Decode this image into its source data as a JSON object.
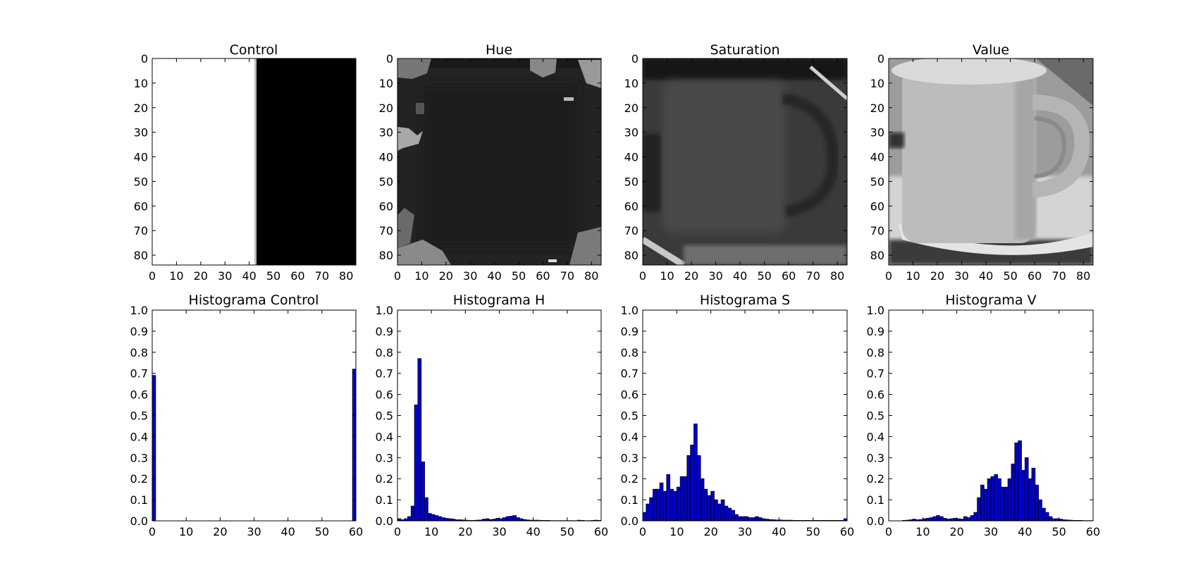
{
  "colors": {
    "bar_fill": "#0000cc",
    "bar_edge": "#000000",
    "axes": "#000000",
    "background": "#ffffff"
  },
  "images": [
    {
      "title": "Control",
      "kind": "control-split",
      "xticks": [
        0,
        10,
        20,
        30,
        40,
        50,
        60,
        70,
        80
      ],
      "yticks": [
        0,
        10,
        20,
        30,
        40,
        50,
        60,
        70,
        80
      ],
      "extent": [
        0,
        84
      ],
      "split_at": 43
    },
    {
      "title": "Hue",
      "kind": "hue-photo",
      "xticks": [
        0,
        10,
        20,
        30,
        40,
        50,
        60,
        70,
        80
      ],
      "yticks": [
        0,
        10,
        20,
        30,
        40,
        50,
        60,
        70,
        80
      ],
      "extent": [
        0,
        84
      ]
    },
    {
      "title": "Saturation",
      "kind": "saturation-photo",
      "xticks": [
        0,
        10,
        20,
        30,
        40,
        50,
        60,
        70,
        80
      ],
      "yticks": [
        0,
        10,
        20,
        30,
        40,
        50,
        60,
        70,
        80
      ],
      "extent": [
        0,
        84
      ]
    },
    {
      "title": "Value",
      "kind": "value-photo",
      "xticks": [
        0,
        10,
        20,
        30,
        40,
        50,
        60,
        70,
        80
      ],
      "yticks": [
        0,
        10,
        20,
        30,
        40,
        50,
        60,
        70,
        80
      ],
      "extent": [
        0,
        84
      ]
    }
  ],
  "chart_data": [
    {
      "type": "bar",
      "title": "Histograma Control",
      "xlim": [
        0,
        60
      ],
      "ylim": [
        0,
        1.0
      ],
      "xticks": [
        0,
        10,
        20,
        30,
        40,
        50,
        60
      ],
      "yticks": [
        "0.0",
        "0.1",
        "0.2",
        "0.3",
        "0.4",
        "0.5",
        "0.6",
        "0.7",
        "0.8",
        "0.9",
        "1.0"
      ],
      "bin_width": 1,
      "bins": [
        0,
        59
      ],
      "values": [
        0.69,
        0.72
      ]
    },
    {
      "type": "bar",
      "title": "Histograma H",
      "xlim": [
        0,
        60
      ],
      "ylim": [
        0,
        1.0
      ],
      "xticks": [
        0,
        10,
        20,
        30,
        40,
        50,
        60
      ],
      "yticks": [
        "0.0",
        "0.1",
        "0.2",
        "0.3",
        "0.4",
        "0.5",
        "0.6",
        "0.7",
        "0.8",
        "0.9",
        "1.0"
      ],
      "bin_width": 1,
      "bins": [
        0,
        1,
        2,
        3,
        4,
        5,
        6,
        7,
        8,
        9,
        10,
        11,
        12,
        13,
        14,
        15,
        16,
        17,
        18,
        19,
        20,
        21,
        22,
        23,
        24,
        25,
        26,
        27,
        28,
        29,
        30,
        31,
        32,
        33,
        34,
        35,
        36,
        37,
        38,
        39,
        40,
        41,
        42,
        43,
        44,
        45,
        46,
        47,
        48,
        49,
        50,
        51,
        52,
        53,
        54,
        55,
        56,
        57,
        58,
        59
      ],
      "values": [
        0.01,
        0.005,
        0.01,
        0.02,
        0.07,
        0.55,
        0.77,
        0.28,
        0.11,
        0.035,
        0.03,
        0.025,
        0.02,
        0.015,
        0.012,
        0.01,
        0.008,
        0.005,
        0.005,
        0.004,
        0.003,
        0.002,
        0.002,
        0.003,
        0.004,
        0.008,
        0.01,
        0.006,
        0.008,
        0.012,
        0.01,
        0.015,
        0.02,
        0.022,
        0.025,
        0.015,
        0.01,
        0.006,
        0.004,
        0.003,
        0.003,
        0.003,
        0.002,
        0.002,
        0.002,
        0.001,
        0.001,
        0.001,
        0.001,
        0.001,
        0.001,
        0.001,
        0.001,
        0.003,
        0.002,
        0.001,
        0.001,
        0.002,
        0.003,
        0.002
      ]
    },
    {
      "type": "bar",
      "title": "Histograma S",
      "xlim": [
        0,
        60
      ],
      "ylim": [
        0,
        1.0
      ],
      "xticks": [
        0,
        10,
        20,
        30,
        40,
        50,
        60
      ],
      "yticks": [
        "0.0",
        "0.1",
        "0.2",
        "0.3",
        "0.4",
        "0.5",
        "0.6",
        "0.7",
        "0.8",
        "0.9",
        "1.0"
      ],
      "bin_width": 1,
      "bins": [
        0,
        1,
        2,
        3,
        4,
        5,
        6,
        7,
        8,
        9,
        10,
        11,
        12,
        13,
        14,
        15,
        16,
        17,
        18,
        19,
        20,
        21,
        22,
        23,
        24,
        25,
        26,
        27,
        28,
        29,
        30,
        31,
        32,
        33,
        34,
        35,
        36,
        37,
        38,
        39,
        40,
        41,
        42,
        43,
        44,
        45,
        46,
        47,
        48,
        49,
        50,
        51,
        52,
        53,
        54,
        55,
        56,
        57,
        58,
        59
      ],
      "values": [
        0.04,
        0.08,
        0.11,
        0.15,
        0.15,
        0.18,
        0.14,
        0.22,
        0.15,
        0.14,
        0.16,
        0.21,
        0.21,
        0.31,
        0.36,
        0.46,
        0.31,
        0.2,
        0.15,
        0.12,
        0.14,
        0.1,
        0.08,
        0.1,
        0.07,
        0.06,
        0.05,
        0.03,
        0.02,
        0.02,
        0.02,
        0.015,
        0.015,
        0.02,
        0.015,
        0.01,
        0.008,
        0.006,
        0.005,
        0.004,
        0.004,
        0.003,
        0.003,
        0.003,
        0.002,
        0.002,
        0.002,
        0.002,
        0.002,
        0.002,
        0.002,
        0.002,
        0.002,
        0.002,
        0.002,
        0.002,
        0.002,
        0.002,
        0.002,
        0.01
      ]
    },
    {
      "type": "bar",
      "title": "Histograma V",
      "xlim": [
        0,
        60
      ],
      "ylim": [
        0,
        1.0
      ],
      "xticks": [
        0,
        10,
        20,
        30,
        40,
        50,
        60
      ],
      "yticks": [
        "0.0",
        "0.1",
        "0.2",
        "0.3",
        "0.4",
        "0.5",
        "0.6",
        "0.7",
        "0.8",
        "0.9",
        "1.0"
      ],
      "bin_width": 1,
      "bins": [
        0,
        1,
        2,
        3,
        4,
        5,
        6,
        7,
        8,
        9,
        10,
        11,
        12,
        13,
        14,
        15,
        16,
        17,
        18,
        19,
        20,
        21,
        22,
        23,
        24,
        25,
        26,
        27,
        28,
        29,
        30,
        31,
        32,
        33,
        34,
        35,
        36,
        37,
        38,
        39,
        40,
        41,
        42,
        43,
        44,
        45,
        46,
        47,
        48,
        49,
        50,
        51,
        52,
        53,
        54,
        55,
        56,
        57,
        58,
        59
      ],
      "values": [
        0,
        0,
        0,
        0,
        0.002,
        0.003,
        0.005,
        0.008,
        0.005,
        0.006,
        0.01,
        0.012,
        0.015,
        0.02,
        0.025,
        0.02,
        0.012,
        0.008,
        0.01,
        0.012,
        0.01,
        0.008,
        0.02,
        0.015,
        0.025,
        0.04,
        0.11,
        0.17,
        0.15,
        0.2,
        0.21,
        0.22,
        0.2,
        0.16,
        0.16,
        0.2,
        0.27,
        0.37,
        0.38,
        0.24,
        0.3,
        0.2,
        0.25,
        0.17,
        0.1,
        0.06,
        0.04,
        0.02,
        0.01,
        0.01,
        0.008,
        0.005,
        0.004,
        0.003,
        0.002,
        0.002,
        0.002,
        0.001,
        0.001,
        0.001
      ]
    }
  ]
}
